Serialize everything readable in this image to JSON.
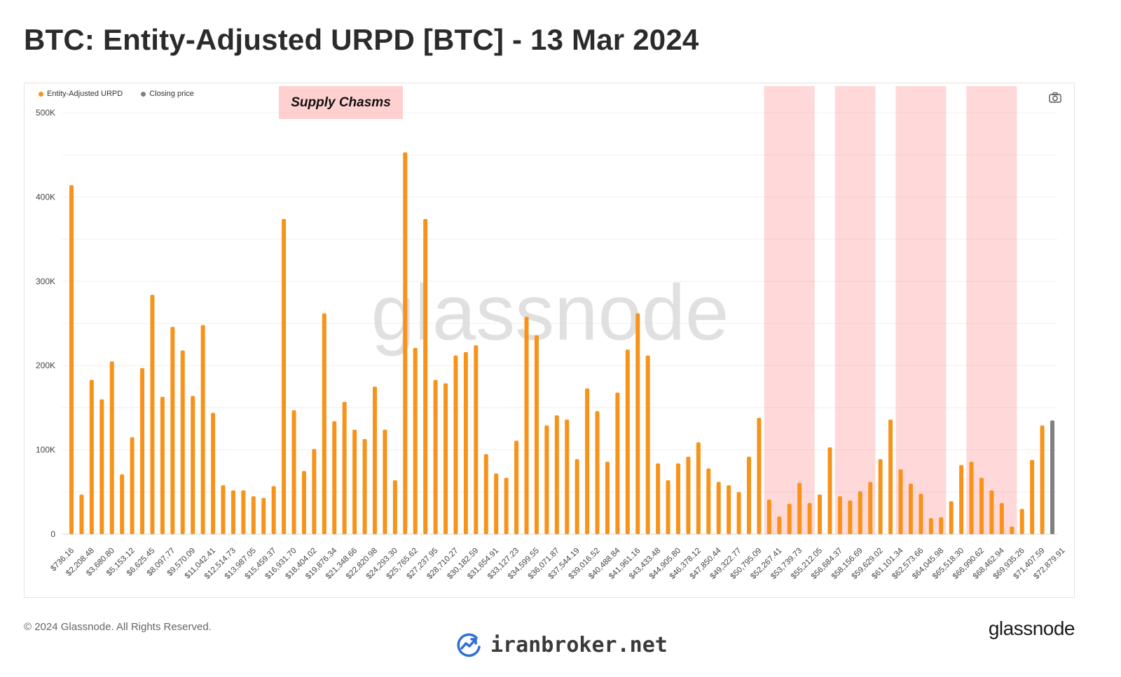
{
  "title": "BTC: Entity-Adjusted URPD [BTC] - 13 Mar 2024",
  "legend": [
    {
      "label": "Entity-Adjusted URPD",
      "color": "#f7931a"
    },
    {
      "label": "Closing price",
      "color": "#808080"
    }
  ],
  "watermark": "glassnode",
  "footer": {
    "copyright": "© 2024 Glassnode. All Rights Reserved.",
    "logo": "glassnode",
    "site": "iranbroker.net"
  },
  "icons": {
    "camera": "camera-icon",
    "site_logo": "chart-growth-icon"
  },
  "chart_data": {
    "type": "bar",
    "title": "BTC: Entity-Adjusted URPD [BTC] - 13 Mar 2024",
    "xlabel": "",
    "ylabel": "",
    "ylim": [
      0,
      500000
    ],
    "yticks": [
      0,
      100000,
      200000,
      300000,
      400000,
      500000
    ],
    "ytick_labels": [
      "0",
      "100K",
      "200K",
      "300K",
      "400K",
      "500K"
    ],
    "grid": true,
    "legend_position": "top-left",
    "x_tick_labels": [
      "$736.16",
      "$2,208.48",
      "$3,680.80",
      "$5,153.12",
      "$6,625.45",
      "$8,097.77",
      "$9,570.09",
      "$11,042.41",
      "$12,514.73",
      "$13,987.05",
      "$15,459.37",
      "$16,931.70",
      "$18,404.02",
      "$19,876.34",
      "$21,348.66",
      "$22,820.98",
      "$24,293.30",
      "$25,765.62",
      "$27,237.95",
      "$28,710.27",
      "$30,182.59",
      "$31,654.91",
      "$33,127.23",
      "$34,599.55",
      "$36,071.87",
      "$37,544.19",
      "$39,016.52",
      "$40,488.84",
      "$41,961.16",
      "$43,433.48",
      "$44,905.80",
      "$46,378.12",
      "$47,850.44",
      "$49,322.77",
      "$50,795.09",
      "$52,267.41",
      "$53,739.73",
      "$55,212.05",
      "$56,684.37",
      "$58,156.69",
      "$59,629.02",
      "$61,101.34",
      "$62,573.66",
      "$64,045.98",
      "$65,518.30",
      "$66,990.62",
      "$68,462.94",
      "$69,935.26",
      "$71,407.59",
      "$72,879.91"
    ],
    "series": [
      {
        "name": "Entity-Adjusted URPD",
        "color": "#f7931a",
        "values": [
          414000,
          47000,
          183000,
          160000,
          205000,
          71000,
          115000,
          197000,
          284000,
          163000,
          246000,
          218000,
          164000,
          248000,
          144000,
          58000,
          52000,
          52000,
          45000,
          43000,
          57000,
          374000,
          147000,
          75000,
          101000,
          262000,
          134000,
          157000,
          124000,
          113000,
          175000,
          124000,
          64000,
          453000,
          221000,
          374000,
          183000,
          179000,
          212000,
          216000,
          224000,
          95000,
          72000,
          67000,
          111000,
          258000,
          236000,
          129000,
          141000,
          136000,
          89000,
          173000,
          146000,
          86000,
          168000,
          219000,
          262000,
          212000,
          84000,
          64000,
          84000,
          92000,
          109000,
          78000,
          62000,
          58000,
          50000,
          92000,
          138000,
          41000,
          21000,
          36000,
          61000,
          37000,
          47000,
          103000,
          45000,
          40000,
          51000,
          62000,
          89000,
          136000,
          77000,
          60000,
          48000,
          19000,
          20000,
          39000,
          82000,
          86000,
          67000,
          52000,
          37000,
          9000,
          30000,
          88000,
          129000
        ]
      },
      {
        "name": "Closing price",
        "color": "#808080",
        "values": [
          135000
        ]
      }
    ],
    "annotations": [
      {
        "text": "Supply Chasms",
        "type": "label"
      }
    ],
    "highlight_bands_color": "rgba(255,105,105,0.25)",
    "highlight_bands": [
      {
        "from_bar": 69,
        "to_bar": 73
      },
      {
        "from_bar": 76,
        "to_bar": 79
      },
      {
        "from_bar": 82,
        "to_bar": 86
      },
      {
        "from_bar": 89,
        "to_bar": 93
      }
    ]
  }
}
